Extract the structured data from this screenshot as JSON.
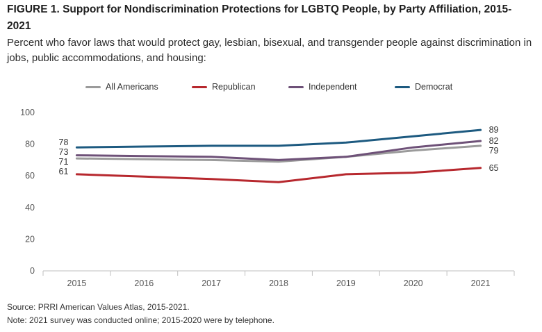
{
  "figure": {
    "title": "FIGURE 1.  Support for Nondiscrimination Protections for LGBTQ People, by Party Affiliation, 2015-2021",
    "subtitle": "Percent who favor laws that would protect gay, lesbian, bisexual, and transgender people against discrimination in jobs, public accommodations, and housing:",
    "source": "Source: PRRI American Values Atlas, 2015-2021.",
    "note": "Note: 2021 survey was conducted online; 2015-2020 were by telephone."
  },
  "chart_data": {
    "type": "line",
    "x": [
      2015,
      2016,
      2017,
      2018,
      2019,
      2020,
      2021
    ],
    "ylim": [
      0,
      100
    ],
    "yticks": [
      0,
      20,
      40,
      60,
      80,
      100
    ],
    "grid": false,
    "legend": "top",
    "series": [
      {
        "name": "All Americans",
        "color": "#9b9b9b",
        "values": [
          71,
          70.5,
          70,
          69,
          72,
          76,
          79
        ],
        "start_label": "71",
        "end_label": "79"
      },
      {
        "name": "Republican",
        "color": "#b7282e",
        "values": [
          61,
          59.5,
          58,
          56,
          61,
          62,
          65
        ],
        "start_label": "61",
        "end_label": "65"
      },
      {
        "name": "Independent",
        "color": "#6e5178",
        "values": [
          73,
          72.5,
          72,
          70,
          72,
          78,
          82
        ],
        "start_label": "73",
        "end_label": "82"
      },
      {
        "name": "Democrat",
        "color": "#1d5a80",
        "values": [
          78,
          78.5,
          79,
          79,
          81,
          85,
          89
        ],
        "start_label": "78",
        "end_label": "89"
      }
    ]
  }
}
